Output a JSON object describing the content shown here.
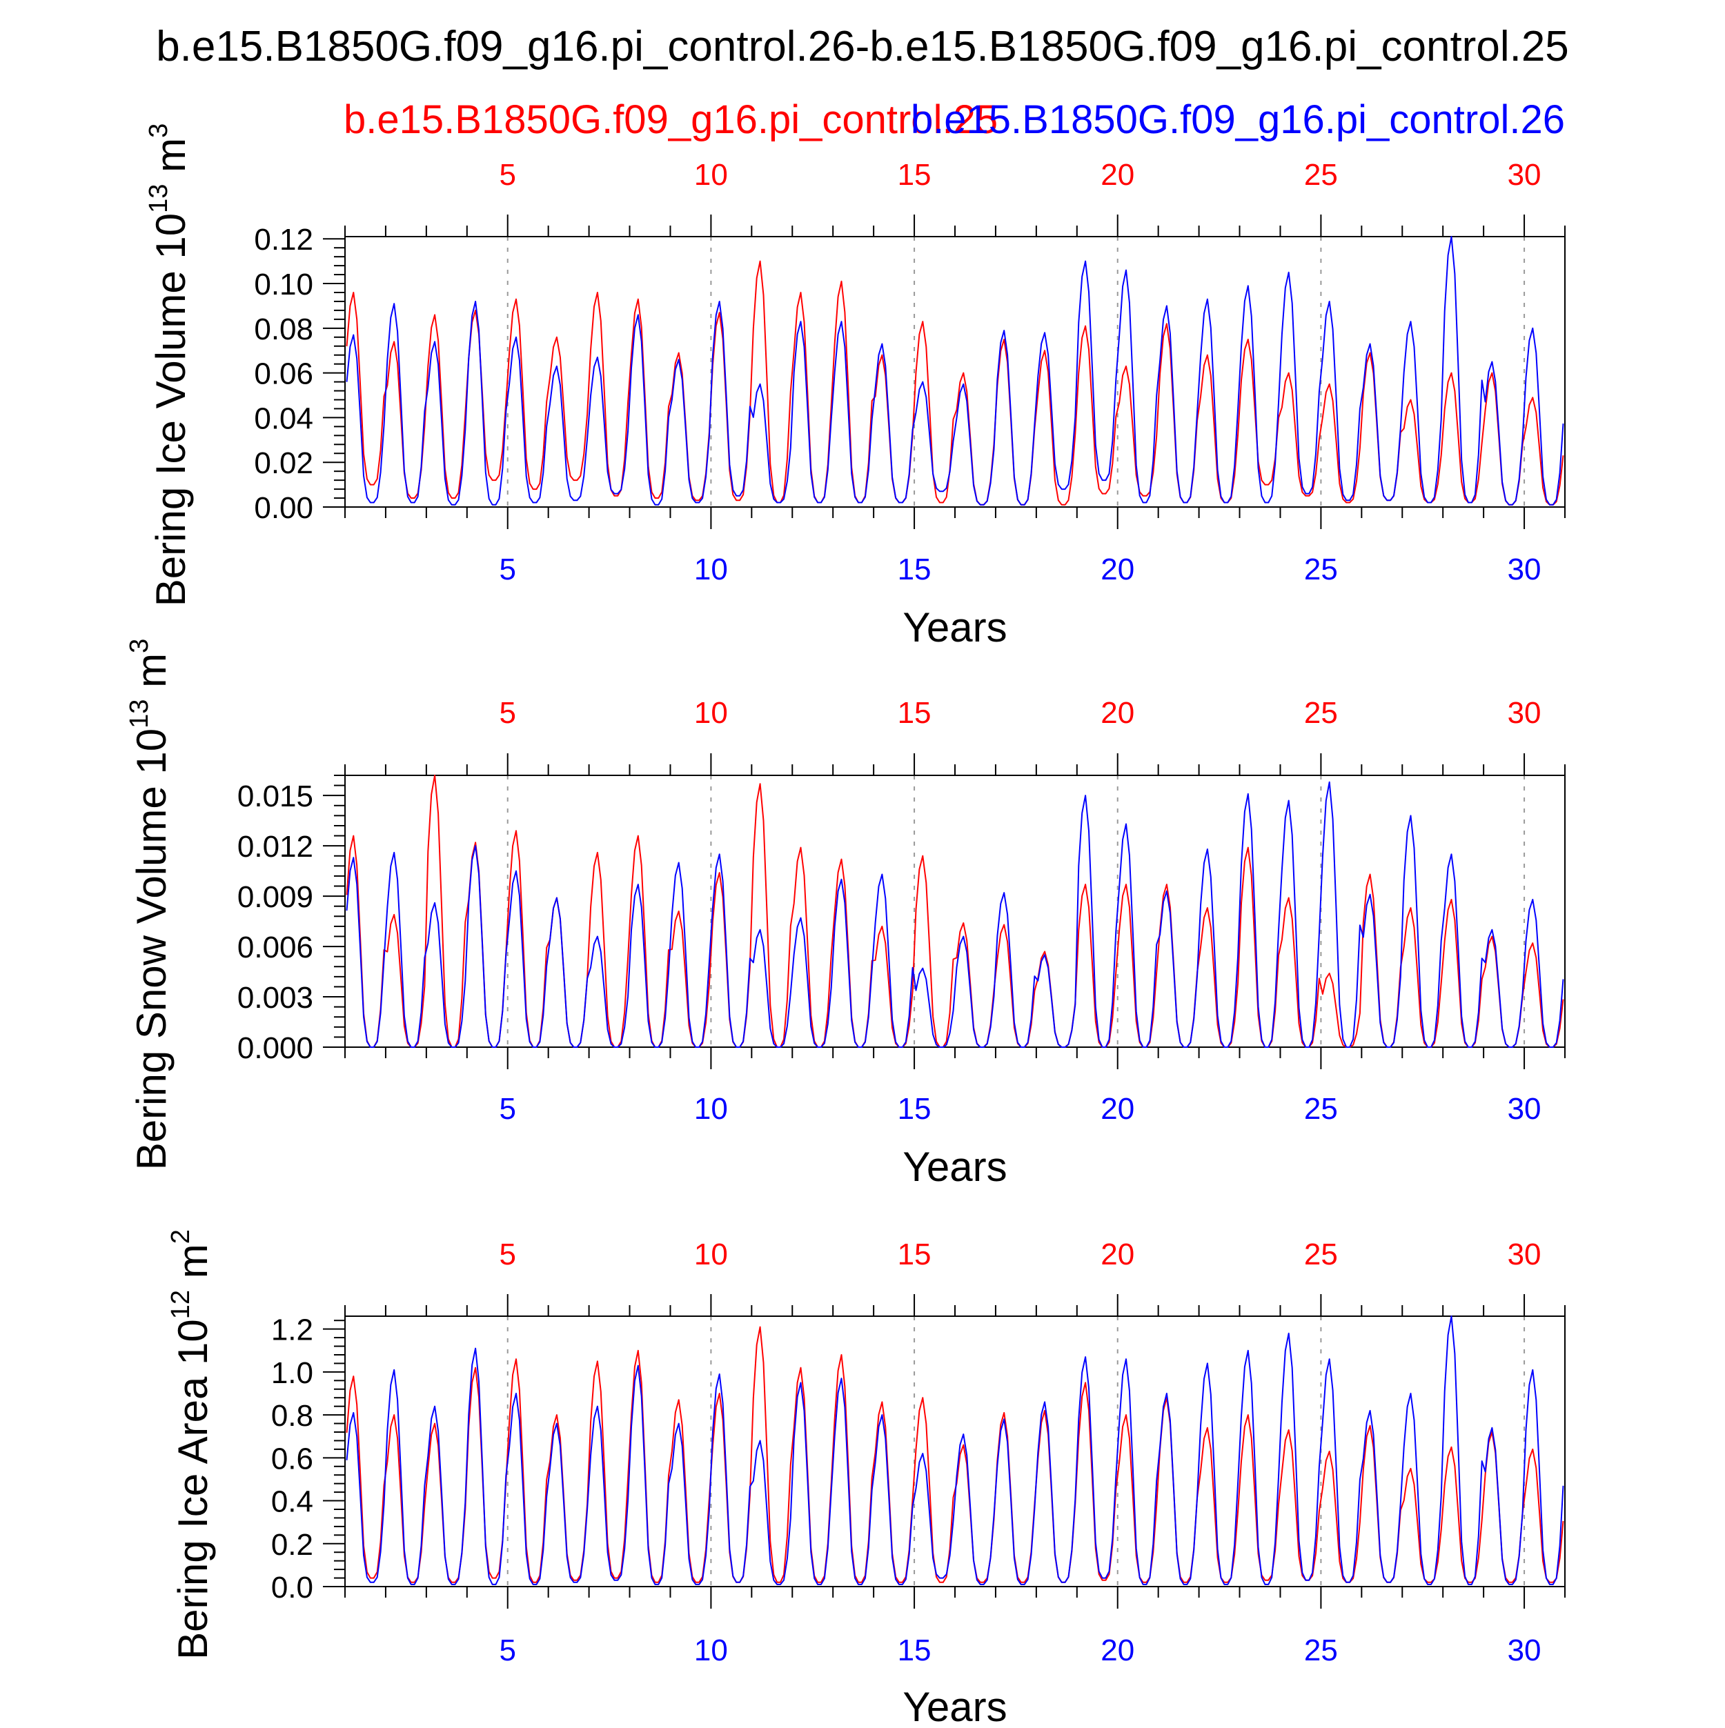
{
  "title": "b.e15.B1850G.f09_g16.pi_control.26-b.e15.B1850G.f09_g16.pi_control.25",
  "legend": {
    "red_label": "b.e15.B1850G.f09_g16.pi_control.25",
    "blue_label": "b.e15.B1850G.f09_g16.pi_control.26"
  },
  "colors": {
    "red": "#ff0000",
    "blue": "#0000ff",
    "axis": "#000000",
    "grid": "#999999"
  },
  "chart_data": [
    {
      "type": "line",
      "ylabel": "Bering Ice Volume 10",
      "ylabel_exp": "13",
      "ylabel_unit": " m",
      "ylabel_unit_exp": "3",
      "xlabel": "Years",
      "xlim": [
        1,
        31
      ],
      "ylim": [
        0,
        0.121
      ],
      "yticks": [
        0,
        0.02,
        0.04,
        0.06,
        0.08,
        0.1,
        0.12
      ],
      "ytick_labels": [
        "0.00",
        "0.02",
        "0.04",
        "0.06",
        "0.08",
        "0.10",
        "0.12"
      ],
      "xticks": [
        5,
        10,
        15,
        20,
        25,
        30
      ],
      "xtick_labels": [
        "5",
        "10",
        "15",
        "20",
        "25",
        "30"
      ],
      "series": [
        {
          "name": "b.e15.B1850G.f09_g16.pi_control.25",
          "color": "#ff0000",
          "peaks": [
            0.096,
            0.074,
            0.086,
            0.088,
            0.093,
            0.076,
            0.096,
            0.093,
            0.069,
            0.087,
            0.11,
            0.096,
            0.101,
            0.068,
            0.083,
            0.06,
            0.075,
            0.07,
            0.081,
            0.063,
            0.082,
            0.068,
            0.075,
            0.06,
            0.055,
            0.069,
            0.048,
            0.06,
            0.06,
            0.049
          ],
          "minima": [
            0.01,
            0.004,
            0.004,
            0.012,
            0.008,
            0.012,
            0.005,
            0.004,
            0.003,
            0.003,
            0.002,
            0.002,
            0.002,
            0.002,
            0.002,
            0.001,
            0.001,
            0.001,
            0.006,
            0.005,
            0.002,
            0.002,
            0.01,
            0.005,
            0.002,
            0.003,
            0.002,
            0.002,
            0.001,
            0.001
          ]
        },
        {
          "name": "b.e15.B1850G.f09_g16.pi_control.26",
          "color": "#0000ff",
          "peaks": [
            0.077,
            0.091,
            0.074,
            0.092,
            0.076,
            0.063,
            0.067,
            0.086,
            0.066,
            0.092,
            0.055,
            0.083,
            0.083,
            0.073,
            0.056,
            0.055,
            0.079,
            0.078,
            0.11,
            0.106,
            0.09,
            0.093,
            0.099,
            0.105,
            0.092,
            0.073,
            0.083,
            0.121,
            0.065,
            0.08
          ],
          "minima": [
            0.002,
            0.002,
            0.001,
            0.001,
            0.002,
            0.003,
            0.006,
            0.001,
            0.002,
            0.005,
            0.002,
            0.002,
            0.002,
            0.002,
            0.007,
            0.001,
            0.001,
            0.008,
            0.012,
            0.002,
            0.002,
            0.002,
            0.002,
            0.006,
            0.003,
            0.003,
            0.002,
            0.002,
            0.001,
            0.001
          ]
        }
      ]
    },
    {
      "type": "line",
      "ylabel": "Bering Snow Volume 10",
      "ylabel_exp": "13",
      "ylabel_unit": " m",
      "ylabel_unit_exp": "3",
      "xlabel": "Years",
      "xlim": [
        1,
        31
      ],
      "ylim": [
        0,
        0.0162
      ],
      "yticks": [
        0,
        0.003,
        0.006,
        0.009,
        0.012,
        0.015
      ],
      "ytick_labels": [
        "0.000",
        "0.003",
        "0.006",
        "0.009",
        "0.012",
        "0.015"
      ],
      "xticks": [
        5,
        10,
        15,
        20,
        25,
        30
      ],
      "xtick_labels": [
        "5",
        "10",
        "15",
        "20",
        "25",
        "30"
      ],
      "series": [
        {
          "name": "b.e15.B1850G.f09_g16.pi_control.25",
          "color": "#ff0000",
          "peaks": [
            0.0126,
            0.0079,
            0.0162,
            0.0122,
            0.0129,
            0.0089,
            0.0116,
            0.0126,
            0.0081,
            0.0104,
            0.0157,
            0.0119,
            0.0112,
            0.0072,
            0.0114,
            0.0074,
            0.0073,
            0.0057,
            0.0097,
            0.0097,
            0.0097,
            0.0083,
            0.0119,
            0.0089,
            0.0044,
            0.0103,
            0.0083,
            0.0088,
            0.0066,
            0.0062
          ],
          "minima": [
            0,
            0,
            0,
            0,
            0,
            0,
            0,
            0,
            0,
            0,
            0,
            0,
            0,
            0,
            0,
            0,
            0,
            0,
            0,
            0,
            0,
            0,
            0,
            0,
            0,
            0,
            0,
            0,
            0,
            0
          ]
        },
        {
          "name": "b.e15.B1850G.f09_g16.pi_control.26",
          "color": "#0000ff",
          "peaks": [
            0.0113,
            0.0116,
            0.0086,
            0.012,
            0.0105,
            0.0089,
            0.0066,
            0.0097,
            0.011,
            0.0115,
            0.007,
            0.0077,
            0.01,
            0.0103,
            0.0047,
            0.0066,
            0.0092,
            0.0055,
            0.015,
            0.0133,
            0.0093,
            0.0118,
            0.0151,
            0.0147,
            0.0158,
            0.0091,
            0.0138,
            0.0115,
            0.007,
            0.0088
          ],
          "minima": [
            0,
            0,
            0,
            0,
            0,
            0,
            0,
            0,
            0,
            0,
            0,
            0,
            0,
            0,
            0,
            0,
            0,
            0,
            0,
            0,
            0,
            0,
            0,
            0,
            0,
            0,
            0,
            0,
            0,
            0
          ]
        }
      ]
    },
    {
      "type": "line",
      "ylabel": "Bering Ice Area 10",
      "ylabel_exp": "12",
      "ylabel_unit": " m",
      "ylabel_unit_exp": "2",
      "xlabel": "Years",
      "xlim": [
        1,
        31
      ],
      "ylim": [
        0,
        1.26
      ],
      "yticks": [
        0,
        0.2,
        0.4,
        0.6,
        0.8,
        1.0,
        1.2
      ],
      "ytick_labels": [
        "0.0",
        "0.2",
        "0.4",
        "0.6",
        "0.8",
        "1.0",
        "1.2"
      ],
      "xticks": [
        5,
        10,
        15,
        20,
        25,
        30
      ],
      "xtick_labels": [
        "5",
        "10",
        "15",
        "20",
        "25",
        "30"
      ],
      "series": [
        {
          "name": "b.e15.B1850G.f09_g16.pi_control.25",
          "color": "#ff0000",
          "peaks": [
            0.98,
            0.8,
            0.76,
            1.02,
            1.06,
            0.8,
            1.05,
            1.1,
            0.87,
            0.9,
            1.21,
            1.02,
            1.08,
            0.86,
            0.88,
            0.66,
            0.81,
            0.82,
            0.95,
            0.8,
            0.88,
            0.74,
            0.8,
            0.73,
            0.63,
            0.75,
            0.55,
            0.65,
            0.72,
            0.64
          ],
          "minima": [
            0.04,
            0.02,
            0.02,
            0.04,
            0.02,
            0.03,
            0.04,
            0.02,
            0.02,
            0.02,
            0.02,
            0.02,
            0.02,
            0.02,
            0.02,
            0.02,
            0.02,
            0.02,
            0.03,
            0.02,
            0.02,
            0.02,
            0.03,
            0.03,
            0.02,
            0.02,
            0.02,
            0.02,
            0.02,
            0.02
          ]
        },
        {
          "name": "b.e15.B1850G.f09_g16.pi_control.26",
          "color": "#0000ff",
          "peaks": [
            0.81,
            1.01,
            0.84,
            1.11,
            0.9,
            0.76,
            0.84,
            1.03,
            0.76,
            0.99,
            0.68,
            0.95,
            0.97,
            0.8,
            0.62,
            0.71,
            0.78,
            0.86,
            1.07,
            1.06,
            0.9,
            1.04,
            1.1,
            1.18,
            1.06,
            0.82,
            0.9,
            1.26,
            0.74,
            1.01
          ],
          "minima": [
            0.02,
            0.01,
            0.01,
            0.01,
            0.01,
            0.02,
            0.03,
            0.01,
            0.01,
            0.02,
            0.01,
            0.01,
            0.01,
            0.01,
            0.04,
            0.01,
            0.01,
            0.02,
            0.04,
            0.01,
            0.01,
            0.01,
            0.01,
            0.03,
            0.02,
            0.02,
            0.01,
            0.01,
            0.01,
            0.01
          ]
        }
      ]
    }
  ]
}
